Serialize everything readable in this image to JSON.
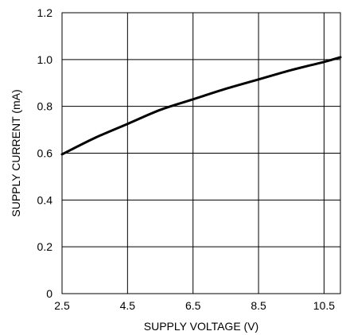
{
  "chart_data": {
    "type": "line",
    "title": "",
    "xlabel": "SUPPLY VOLTAGE (V)",
    "ylabel": "SUPPLY CURRENT (mA)",
    "xlim": [
      2.5,
      11.0
    ],
    "ylim": [
      0,
      1.2
    ],
    "grid": true,
    "xticks": [
      2.5,
      4.5,
      6.5,
      8.5,
      10.5
    ],
    "xtick_labels": [
      "2.5",
      "4.5",
      "6.5",
      "8.5",
      "10.5"
    ],
    "yticks": [
      0,
      0.2,
      0.4,
      0.6,
      0.8,
      1.0,
      1.2
    ],
    "ytick_labels": [
      "0",
      "0.2",
      "0.4",
      "0.6",
      "0.8",
      "1.0",
      "1.2"
    ],
    "series": [
      {
        "x": [
          2.5,
          3.5,
          4.5,
          5.5,
          6.5,
          7.5,
          8.5,
          9.5,
          10.5,
          11.0
        ],
        "y": [
          0.595,
          0.665,
          0.725,
          0.785,
          0.83,
          0.875,
          0.915,
          0.955,
          0.99,
          1.01
        ]
      }
    ]
  },
  "colors": {
    "line": "#000000",
    "grid": "#000000",
    "background": "#ffffff"
  }
}
